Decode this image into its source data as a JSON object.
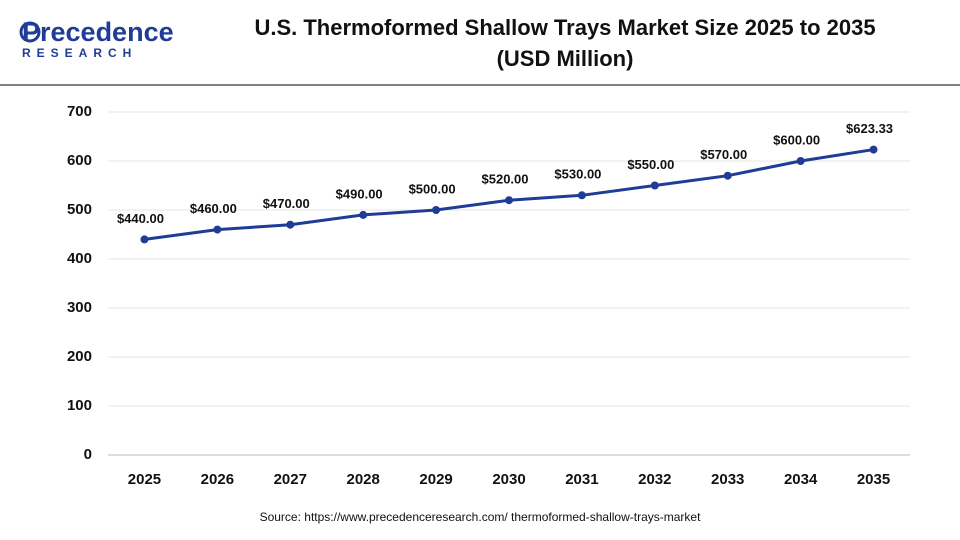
{
  "logo": {
    "name": "Precedence",
    "sub": "RESEARCH"
  },
  "chart_data": {
    "type": "line",
    "title": "U.S. Thermoformed Shallow Trays Market Size 2025 to 2035",
    "subtitle": "(USD Million)",
    "categories": [
      "2025",
      "2026",
      "2027",
      "2028",
      "2029",
      "2030",
      "2031",
      "2032",
      "2033",
      "2034",
      "2035"
    ],
    "values": [
      440,
      460,
      470,
      490,
      500,
      520,
      530,
      550,
      570,
      600,
      623.33
    ],
    "value_labels": [
      "$440.00",
      "$460.00",
      "$470.00",
      "$490.00",
      "$500.00",
      "$520.00",
      "$530.00",
      "$550.00",
      "$570.00",
      "$600.00",
      "$623.33"
    ],
    "color": "#1f3c96",
    "ylim": [
      0,
      700
    ],
    "yticks": [
      0,
      100,
      200,
      300,
      400,
      500,
      600,
      700
    ],
    "grid": true,
    "source": "Source: https://www.precedenceresearch.com/ thermoformed-shallow-trays-market"
  }
}
